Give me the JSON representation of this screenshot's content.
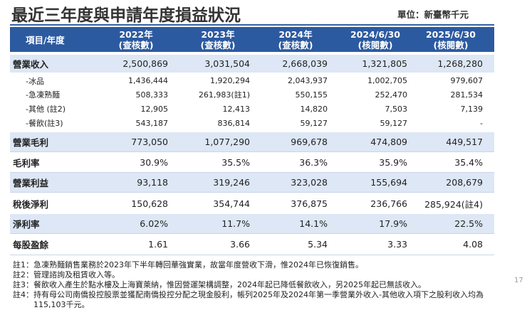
{
  "header": {
    "title": "最近三年度與申請年度損益狀況",
    "unit": "單位：新臺幣千元"
  },
  "table": {
    "columns": [
      "項目/年度",
      [
        "2022年",
        "(查核數)"
      ],
      [
        "2023年",
        "(查核數)"
      ],
      [
        "2024年",
        "(查核數)"
      ],
      [
        "2024/6/30",
        "(核閱數)"
      ],
      [
        "2025/6/30",
        "(核閱數)"
      ]
    ],
    "rows": [
      [
        "營業收入",
        "2,500,869",
        "3,031,504",
        "2,668,039",
        "1,321,805",
        "1,268,280"
      ],
      [
        "-冰品",
        "1,436,444",
        "1,920,294",
        "2,043,937",
        "1,002,705",
        "979,607"
      ],
      [
        "-急凍熟麵",
        "508,333",
        "261,983(註1)",
        "550,155",
        "252,470",
        "281,534"
      ],
      [
        "-其他 (註2)",
        "12,905",
        "12,413",
        "14,820",
        "7,503",
        "7,139"
      ],
      [
        "-餐飲(註3)",
        "543,187",
        "836,814",
        "59,127",
        "59,127",
        "-"
      ],
      [
        "營業毛利",
        "773,050",
        "1,077,290",
        "969,678",
        "474,809",
        "449,517"
      ],
      [
        "毛利率",
        "30.9%",
        "35.5%",
        "36.3%",
        "35.9%",
        "35.4%"
      ],
      [
        "營業利益",
        "93,118",
        "319,246",
        "323,028",
        "155,694",
        "208,679"
      ],
      [
        "稅後淨利",
        "150,628",
        "354,744",
        "376,875",
        "236,766",
        "285,924(註4)"
      ],
      [
        "淨利率",
        "6.02%",
        "11.7%",
        "14.1%",
        "17.9%",
        "22.5%"
      ],
      [
        "每股盈餘",
        "1.61",
        "3.66",
        "5.34",
        "3.33",
        "4.08"
      ]
    ]
  },
  "notes": [
    [
      "註1：",
      "急凍熟麵銷售業務於2023年下半年轉回華強實業，故當年度營收下滑，惟2024年已恢復銷售。"
    ],
    [
      "註2：",
      "管理諮詢及租賃收入等。"
    ],
    [
      "註3：",
      "餐飲收入產生於點水樓及上海寶萊納，惟因營運架構調整，2024年起已降低餐飲收入，另2025年起已無該收入。"
    ],
    [
      "註4：",
      "持有母公司南僑投控股票並獲配南僑投控分配之現金股利，帳列2025年及2024年第一季營業外收入-其他收入項下之股利收入均為115,103千元。"
    ]
  ],
  "page_number": "17"
}
